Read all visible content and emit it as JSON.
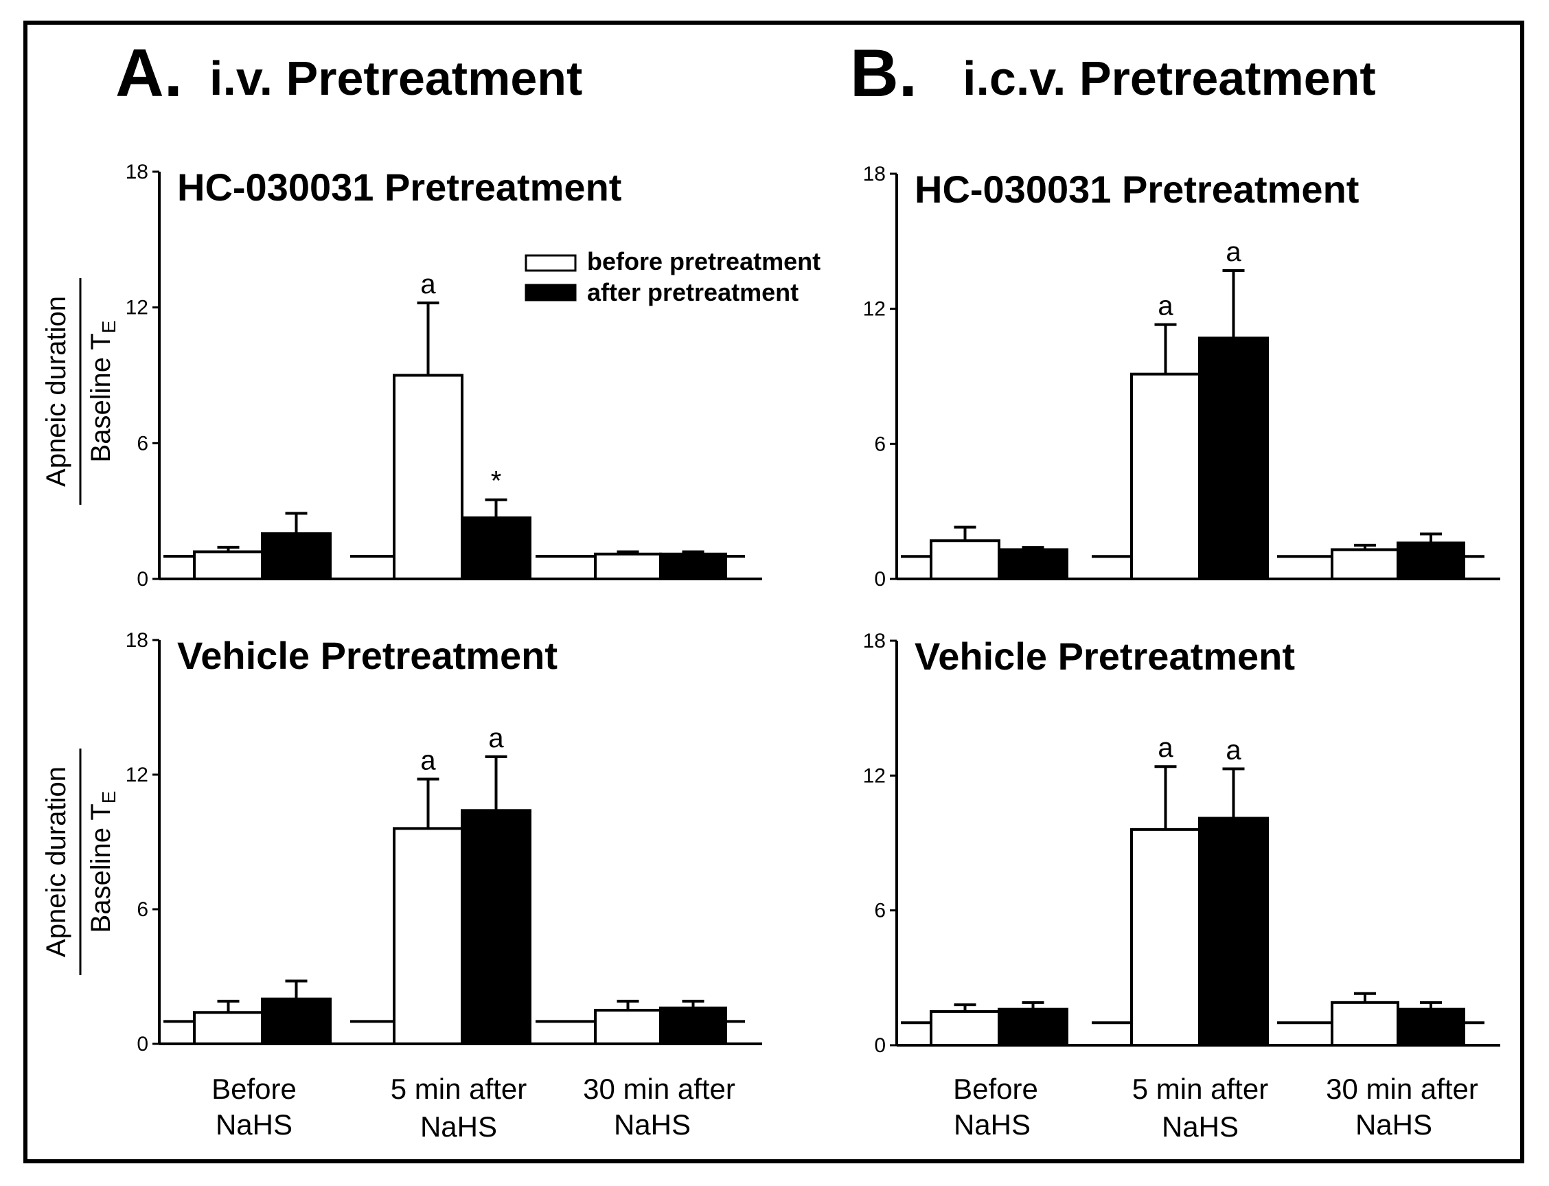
{
  "figure": {
    "panel_a": {
      "letter": "A.",
      "title": "i.v. Pretreatment"
    },
    "panel_b": {
      "letter": "B.",
      "title": "i.c.v. Pretreatment"
    },
    "legend": {
      "before": "before pretreatment",
      "after": "after pretreatment"
    },
    "categories": [
      [
        "Before",
        "NaHS"
      ],
      [
        "5 min after",
        "NaHS"
      ],
      [
        "30 min after",
        "NaHS"
      ]
    ],
    "ylabel_numerator": "Apneic duration",
    "ylabel_denominator": "Baseline T",
    "ylabel_subscript": "E"
  },
  "chart_data": [
    {
      "id": "A-top",
      "type": "bar",
      "title": "HC-030031 Pretreatment",
      "ylim": [
        0,
        18
      ],
      "yticks": [
        0,
        6,
        12,
        18
      ],
      "baseline": 1,
      "series": [
        {
          "name": "before pretreatment",
          "values": [
            1.2,
            9.0,
            1.1
          ],
          "errors": [
            0.2,
            3.2,
            0.1
          ],
          "labels": [
            "",
            "a",
            ""
          ]
        },
        {
          "name": "after pretreatment",
          "values": [
            2.0,
            2.7,
            1.1
          ],
          "errors": [
            0.9,
            0.8,
            0.1
          ],
          "labels": [
            "",
            "*",
            ""
          ]
        }
      ]
    },
    {
      "id": "B-top",
      "type": "bar",
      "title": "HC-030031 Pretreatment",
      "ylim": [
        0,
        18
      ],
      "yticks": [
        0,
        6,
        12,
        18
      ],
      "baseline": 1,
      "series": [
        {
          "name": "before pretreatment",
          "values": [
            1.7,
            9.1,
            1.3
          ],
          "errors": [
            0.6,
            2.2,
            0.2
          ],
          "labels": [
            "",
            "a",
            ""
          ]
        },
        {
          "name": "after pretreatment",
          "values": [
            1.3,
            10.7,
            1.6
          ],
          "errors": [
            0.1,
            3.0,
            0.4
          ],
          "labels": [
            "",
            "a",
            ""
          ]
        }
      ]
    },
    {
      "id": "A-bottom",
      "type": "bar",
      "title": "Vehicle Pretreatment",
      "ylim": [
        0,
        18
      ],
      "yticks": [
        0,
        6,
        12,
        18
      ],
      "baseline": 1,
      "series": [
        {
          "name": "before pretreatment",
          "values": [
            1.4,
            9.6,
            1.5
          ],
          "errors": [
            0.5,
            2.2,
            0.4
          ],
          "labels": [
            "",
            "a",
            ""
          ]
        },
        {
          "name": "after pretreatment",
          "values": [
            2.0,
            10.4,
            1.6
          ],
          "errors": [
            0.8,
            2.4,
            0.3
          ],
          "labels": [
            "",
            "a",
            ""
          ]
        }
      ]
    },
    {
      "id": "B-bottom",
      "type": "bar",
      "title": "Vehicle Pretreatment",
      "ylim": [
        0,
        18
      ],
      "yticks": [
        0,
        6,
        12,
        18
      ],
      "baseline": 1,
      "series": [
        {
          "name": "before pretreatment",
          "values": [
            1.5,
            9.6,
            1.9
          ],
          "errors": [
            0.3,
            2.8,
            0.4
          ],
          "labels": [
            "",
            "a",
            ""
          ]
        },
        {
          "name": "after pretreatment",
          "values": [
            1.6,
            10.1,
            1.6
          ],
          "errors": [
            0.3,
            2.2,
            0.3
          ],
          "labels": [
            "",
            "a",
            ""
          ]
        }
      ]
    }
  ]
}
